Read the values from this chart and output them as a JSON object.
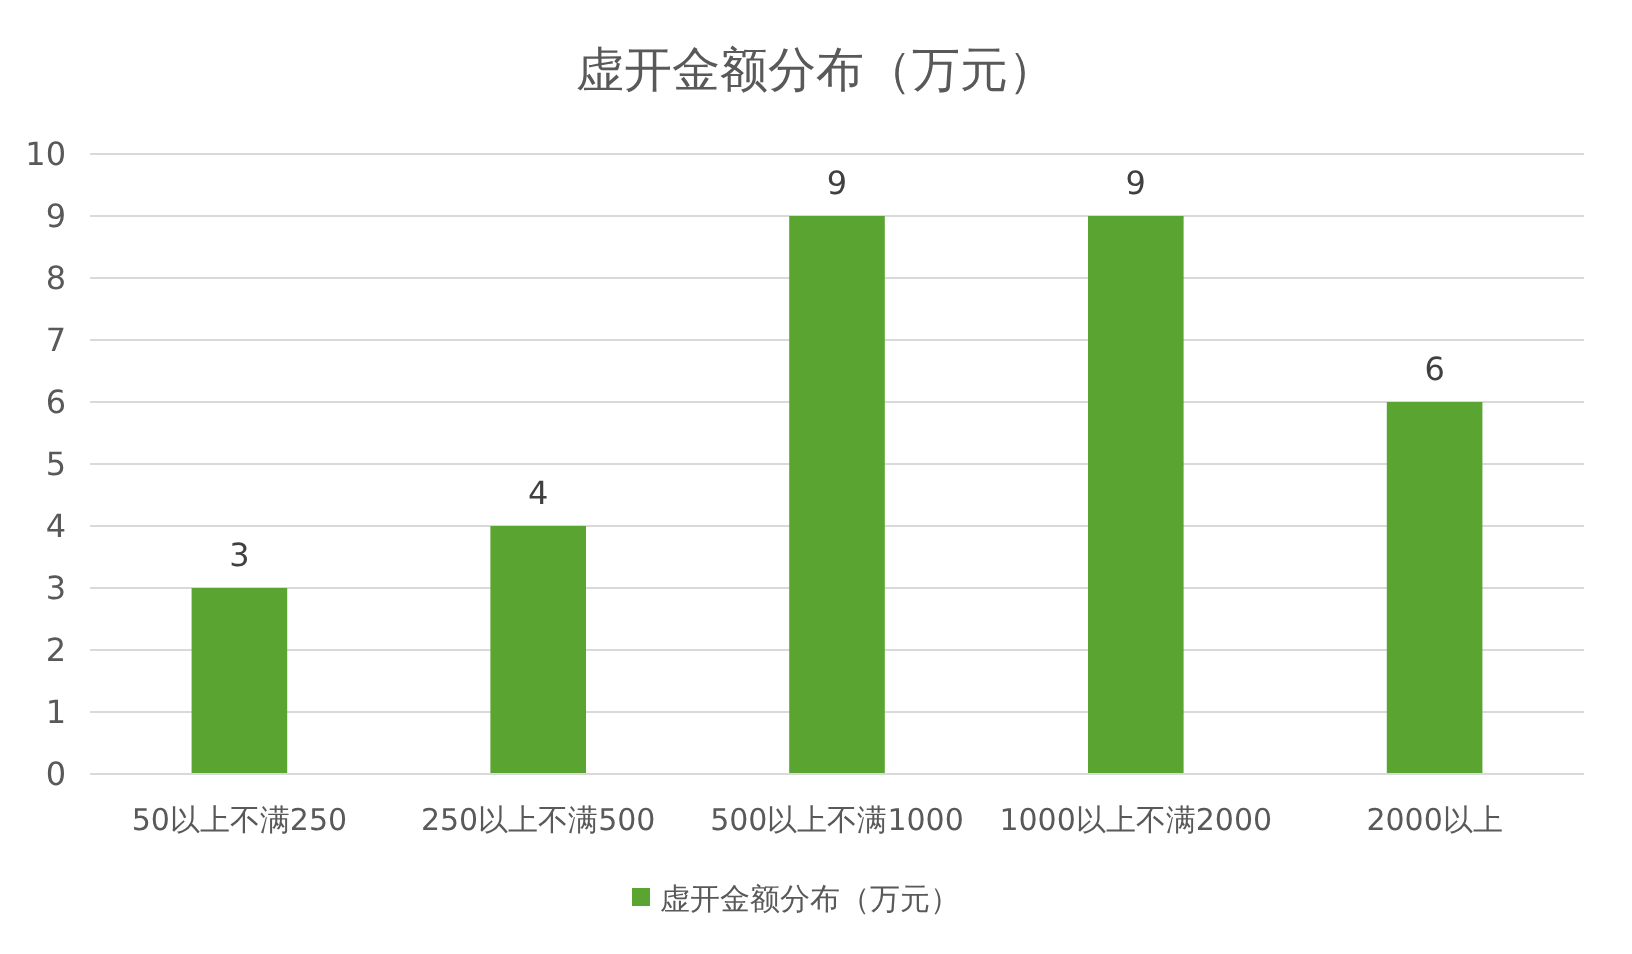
{
  "chart_data": {
    "type": "bar",
    "title": "虚开金额分布（万元）",
    "categories": [
      "50以上不满250",
      "250以上不满500",
      "500以上不满1000",
      "1000以上不满2000",
      "2000以上"
    ],
    "series": [
      {
        "name": "虚开金额分布（万元）",
        "color": "#5aa532",
        "values": [
          3,
          4,
          9,
          9,
          6
        ]
      }
    ],
    "ylim": [
      0,
      10
    ],
    "yticks": [
      0,
      1,
      2,
      3,
      4,
      5,
      6,
      7,
      8,
      9,
      10
    ],
    "grid": "y",
    "legend": "bottom",
    "data_labels": true
  }
}
